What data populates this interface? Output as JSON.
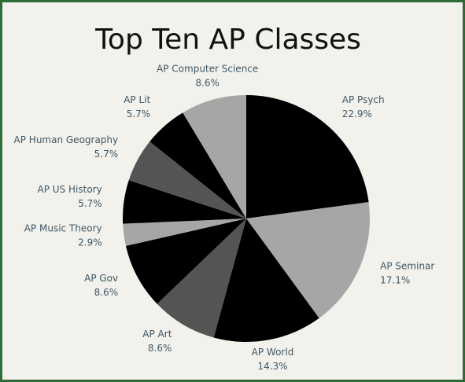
{
  "chart_data": {
    "type": "pie",
    "title": "Top Ten AP Classes",
    "categories": [
      "AP Psych",
      "AP Seminar",
      "AP World",
      "AP Art",
      "AP Gov",
      "AP Music Theory",
      "AP US History",
      "AP Human Geography",
      "AP Lit",
      "AP Computer Science"
    ],
    "values": [
      22.9,
      17.1,
      14.3,
      8.6,
      8.6,
      2.9,
      5.7,
      5.7,
      5.7,
      8.6
    ],
    "value_labels": [
      "22.9%",
      "17.1%",
      "14.3%",
      "8.6%",
      "8.6%",
      "2.9%",
      "5.7%",
      "5.7%",
      "5.7%",
      "8.6%"
    ],
    "colors": [
      "#000000",
      "#a6a6a6",
      "#000000",
      "#545454",
      "#000000",
      "#a6a6a6",
      "#000000",
      "#545454",
      "#000000",
      "#a6a6a6"
    ]
  }
}
